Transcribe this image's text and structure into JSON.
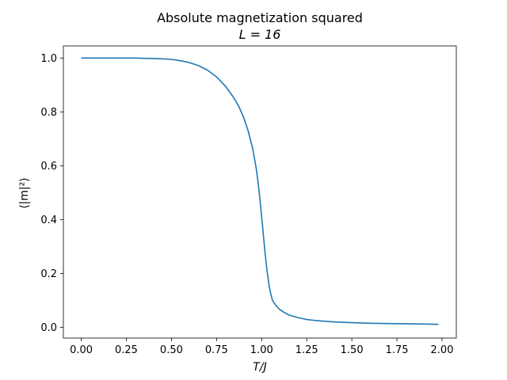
{
  "chart_data": {
    "type": "line",
    "title": "Absolute magnetization squared",
    "subtitle": "L = 16",
    "xlabel": "T/J",
    "ylabel": "⟨|m|²⟩",
    "xlim": [
      -0.099,
      2.079
    ],
    "ylim": [
      -0.04,
      1.045
    ],
    "xticks": [
      0.0,
      0.25,
      0.5,
      0.75,
      1.0,
      1.25,
      1.5,
      1.75,
      2.0
    ],
    "xtick_labels": [
      "0.00",
      "0.25",
      "0.50",
      "0.75",
      "1.00",
      "1.25",
      "1.50",
      "1.75",
      "2.00"
    ],
    "yticks": [
      0.0,
      0.2,
      0.4,
      0.6,
      0.8,
      1.0
    ],
    "ytick_labels": [
      "0.0",
      "0.2",
      "0.4",
      "0.6",
      "0.8",
      "1.0"
    ],
    "grid": false,
    "series": [
      {
        "color": "#1f77b4",
        "x": [
          0.0,
          0.1,
          0.2,
          0.3,
          0.35,
          0.4,
          0.45,
          0.5,
          0.55,
          0.6,
          0.65,
          0.7,
          0.75,
          0.8,
          0.85,
          0.875,
          0.9,
          0.925,
          0.95,
          0.97,
          0.98,
          0.99,
          1.0,
          1.01,
          1.02,
          1.03,
          1.04,
          1.05,
          1.06,
          1.08,
          1.1,
          1.125,
          1.15,
          1.2,
          1.25,
          1.3,
          1.4,
          1.5,
          1.6,
          1.7,
          1.8,
          1.9,
          1.98
        ],
        "y": [
          1.0,
          1.0,
          1.0,
          1.0,
          0.999,
          0.998,
          0.997,
          0.995,
          0.99,
          0.983,
          0.972,
          0.955,
          0.93,
          0.895,
          0.848,
          0.818,
          0.78,
          0.73,
          0.665,
          0.59,
          0.54,
          0.48,
          0.41,
          0.34,
          0.27,
          0.21,
          0.16,
          0.125,
          0.1,
          0.08,
          0.066,
          0.055,
          0.046,
          0.036,
          0.029,
          0.025,
          0.02,
          0.017,
          0.015,
          0.014,
          0.013,
          0.012,
          0.011
        ]
      }
    ]
  }
}
